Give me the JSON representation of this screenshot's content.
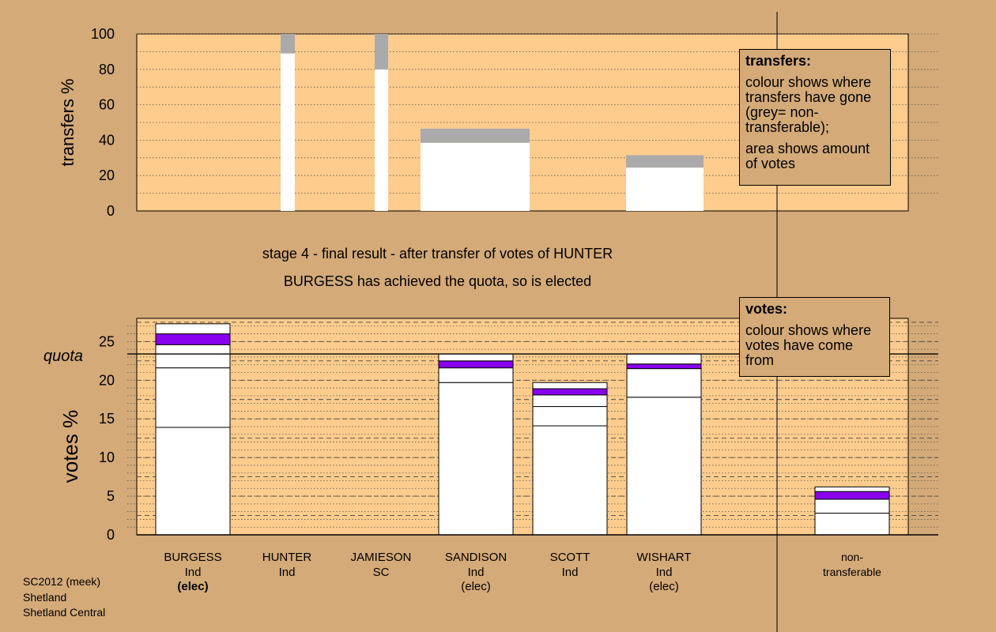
{
  "stage_title": "stage 4 - final result - after transfer of votes of HUNTER",
  "stage_subtitle": "BURGESS has achieved the quota, so is elected",
  "legend_transfers": {
    "title": "transfers:",
    "line1": "colour shows where transfers have gone (grey= non-transferable);",
    "line2": "area shows amount of votes"
  },
  "legend_votes": {
    "title": "votes:",
    "line1": "colour shows where votes have come from"
  },
  "footer": {
    "line1": "SC2012 (meek)",
    "line2": "Shetland",
    "line3": "Shetland Central"
  },
  "colors": {
    "background": "#d4aa78",
    "plot_bg": "#fecc8c",
    "grey": "#aaaaaa",
    "purple": "#8800ee",
    "bar": "#ffffff"
  },
  "chart_data": [
    {
      "type": "bar",
      "ylabel": "transfers %",
      "ylim": [
        0,
        100
      ],
      "yticks": [
        0,
        20,
        40,
        60,
        80,
        100
      ],
      "grid": true,
      "series": [
        {
          "category": "HUNTER",
          "transferred": 89,
          "non_transferable": 11
        },
        {
          "category": "JAMIESON",
          "transferred": 80,
          "non_transferable": 20
        },
        {
          "category": "SANDISON",
          "transferred": 38.5,
          "non_transferable": 8
        },
        {
          "category": "WISHART",
          "transferred": 24.5,
          "non_transferable": 7
        }
      ]
    },
    {
      "type": "bar",
      "ylabel": "votes %",
      "ylim": [
        0,
        28
      ],
      "yticks": [
        0,
        5,
        10,
        15,
        20,
        25
      ],
      "quota_label": "quota",
      "quota": 23.4,
      "grid": true,
      "categories": [
        {
          "name": "BURGESS",
          "party": "Ind",
          "status": "(elec)"
        },
        {
          "name": "HUNTER",
          "party": "Ind",
          "status": ""
        },
        {
          "name": "JAMIESON",
          "party": "SC",
          "status": ""
        },
        {
          "name": "SANDISON",
          "party": "Ind",
          "status": "(elec)"
        },
        {
          "name": "SCOTT",
          "party": "Ind",
          "status": ""
        },
        {
          "name": "WISHART",
          "party": "Ind",
          "status": "(elec)"
        },
        {
          "name": "non-",
          "party": "transferable",
          "status": ""
        }
      ],
      "stacks": [
        [
          {
            "v": 13.9,
            "c": "white"
          },
          {
            "v": 7.7,
            "c": "white"
          },
          {
            "v": 3.0,
            "c": "white"
          },
          {
            "v": 1.4,
            "c": "purple"
          },
          {
            "v": 1.3,
            "c": "white"
          }
        ],
        [],
        [],
        [
          {
            "v": 19.7,
            "c": "white"
          },
          {
            "v": 1.9,
            "c": "white"
          },
          {
            "v": 0.9,
            "c": "purple"
          },
          {
            "v": 0.9,
            "c": "white"
          }
        ],
        [
          {
            "v": 14.1,
            "c": "white"
          },
          {
            "v": 2.5,
            "c": "white"
          },
          {
            "v": 1.5,
            "c": "white"
          },
          {
            "v": 0.8,
            "c": "purple"
          },
          {
            "v": 0.8,
            "c": "white"
          }
        ],
        [
          {
            "v": 17.8,
            "c": "white"
          },
          {
            "v": 3.7,
            "c": "white"
          },
          {
            "v": 0.6,
            "c": "purple"
          },
          {
            "v": 1.3,
            "c": "white"
          }
        ],
        [
          {
            "v": 2.8,
            "c": "white"
          },
          {
            "v": 1.8,
            "c": "white"
          },
          {
            "v": 1.0,
            "c": "purple"
          },
          {
            "v": 0.6,
            "c": "white"
          }
        ]
      ]
    }
  ]
}
